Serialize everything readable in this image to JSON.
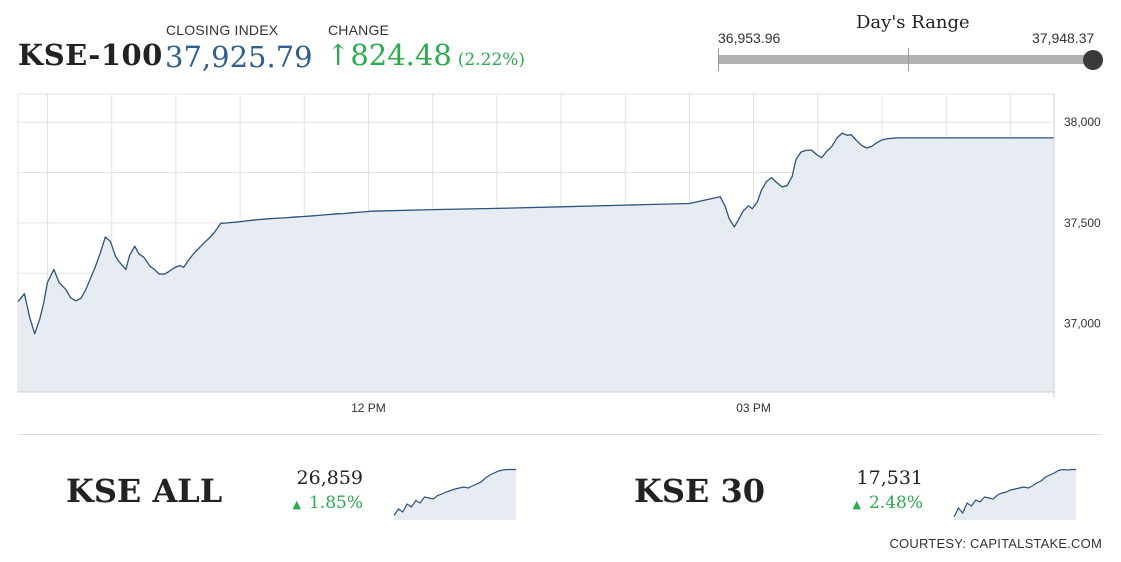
{
  "header": {
    "ticker": "KSE-100",
    "closing_label": "CLOSING INDEX",
    "closing_value": "37,925.79",
    "change_label": "CHANGE",
    "change_arrow": "↑",
    "change_value": "824.48",
    "change_percent": "(2.22%)"
  },
  "day_range": {
    "title": "Day's Range",
    "low": "36,953.96",
    "high": "37,948.37",
    "marker_fraction": 1.0
  },
  "chart_data": {
    "type": "area",
    "title": "",
    "xlabel": "",
    "ylabel": "",
    "x_tick_labels": [
      "12 PM",
      "03 PM"
    ],
    "y_tick_labels": [
      "38,000",
      "37,500",
      "37,000"
    ],
    "y_ticks": [
      38000,
      37500,
      37000
    ],
    "x_ticks_hours": [
      12,
      15
    ],
    "xlim_hours": [
      9.27,
      17.34
    ],
    "ylim": [
      36660,
      38140
    ],
    "grid": true,
    "series": [
      {
        "hours": [
          9.27,
          9.32,
          9.36,
          9.4,
          9.44,
          9.47,
          9.5,
          9.55,
          9.59,
          9.64,
          9.68,
          9.72,
          9.76,
          9.8,
          9.84,
          9.87,
          9.91,
          9.95,
          9.99,
          10.03,
          10.06,
          10.11,
          10.14,
          10.18,
          10.21,
          10.25,
          10.3,
          10.33,
          10.37,
          10.41,
          10.44,
          10.48,
          10.53,
          10.56,
          10.6,
          10.64,
          10.67,
          10.72,
          10.76,
          10.8,
          10.85,
          10.9,
          10.95,
          11.0,
          11.05,
          11.1,
          11.14,
          11.18,
          11.22,
          11.27,
          11.32,
          11.37,
          11.41,
          11.45,
          11.48,
          11.53,
          11.57,
          11.61,
          11.65,
          11.68,
          11.72,
          11.76,
          11.8,
          11.84,
          11.87,
          11.91,
          11.95,
          11.99,
          12.02,
          12.5,
          13.0,
          13.5,
          14.0,
          14.5,
          14.74,
          14.78,
          14.81,
          14.85,
          14.88,
          14.92,
          14.96,
          14.99,
          15.03,
          15.06,
          15.1,
          15.14,
          15.18,
          15.22,
          15.26,
          15.3,
          15.33,
          15.37,
          15.41,
          15.45,
          15.49,
          15.53,
          15.57,
          15.61,
          15.65,
          15.69,
          15.73,
          15.76,
          15.8,
          15.84,
          15.88,
          15.92,
          15.96,
          16.0,
          16.04,
          16.08,
          16.12,
          16.16,
          16.2,
          16.24,
          16.28,
          16.32,
          16.4,
          16.6,
          16.8,
          17.0,
          17.2,
          17.34
        ],
        "values": [
          37109,
          37148,
          37032,
          36949,
          37023,
          37102,
          37205,
          37268,
          37204,
          37171,
          37128,
          37113,
          37125,
          37171,
          37233,
          37278,
          37349,
          37430,
          37408,
          37333,
          37305,
          37268,
          37340,
          37384,
          37347,
          37329,
          37284,
          37270,
          37246,
          37245,
          37256,
          37274,
          37289,
          37279,
          37316,
          37349,
          37368,
          37401,
          37425,
          37452,
          37498,
          37500,
          37503,
          37506,
          37510,
          37513,
          37516,
          37518,
          37520,
          37522,
          37524,
          37526,
          37528,
          37530,
          37531,
          37533,
          37535,
          37537,
          37539,
          37541,
          37543,
          37545,
          37546,
          37548,
          37550,
          37552,
          37554,
          37556,
          37558,
          37566,
          37572,
          37580,
          37588,
          37596,
          37630,
          37580,
          37520,
          37480,
          37513,
          37560,
          37585,
          37570,
          37605,
          37660,
          37705,
          37725,
          37700,
          37679,
          37684,
          37730,
          37815,
          37852,
          37860,
          37862,
          37840,
          37823,
          37856,
          37880,
          37922,
          37946,
          37935,
          37938,
          37910,
          37885,
          37872,
          37880,
          37898,
          37912,
          37918,
          37920,
          37922,
          37922,
          37922,
          37922,
          37922,
          37922,
          37922,
          37922,
          37922,
          37922,
          37922,
          37922
        ]
      }
    ],
    "mini_charts": [
      {
        "name": "KSE ALL",
        "value": "26,859",
        "change": "1.85%",
        "values": [
          0.05,
          0.18,
          0.12,
          0.28,
          0.22,
          0.35,
          0.3,
          0.42,
          0.4,
          0.38,
          0.45,
          0.48,
          0.52,
          0.55,
          0.58,
          0.6,
          0.62,
          0.6,
          0.64,
          0.68,
          0.72,
          0.8,
          0.86,
          0.9,
          0.94,
          0.96,
          0.97,
          0.97,
          0.97
        ]
      },
      {
        "name": "KSE 30",
        "value": "17,531",
        "change": "2.48%",
        "values": [
          0.02,
          0.2,
          0.1,
          0.3,
          0.24,
          0.36,
          0.32,
          0.42,
          0.4,
          0.38,
          0.46,
          0.5,
          0.52,
          0.56,
          0.58,
          0.6,
          0.62,
          0.6,
          0.64,
          0.7,
          0.74,
          0.82,
          0.86,
          0.9,
          0.95,
          0.97,
          0.96,
          0.97,
          0.97
        ]
      }
    ]
  },
  "colors": {
    "line": "#2c537f",
    "area": "#e7ecf2",
    "positive": "#2bac4c",
    "closing": "#2f5f8f",
    "grid": "#e2e2e2"
  },
  "footer": {
    "courtesy": "COURTESY: CAPITALSTAKE.COM"
  }
}
